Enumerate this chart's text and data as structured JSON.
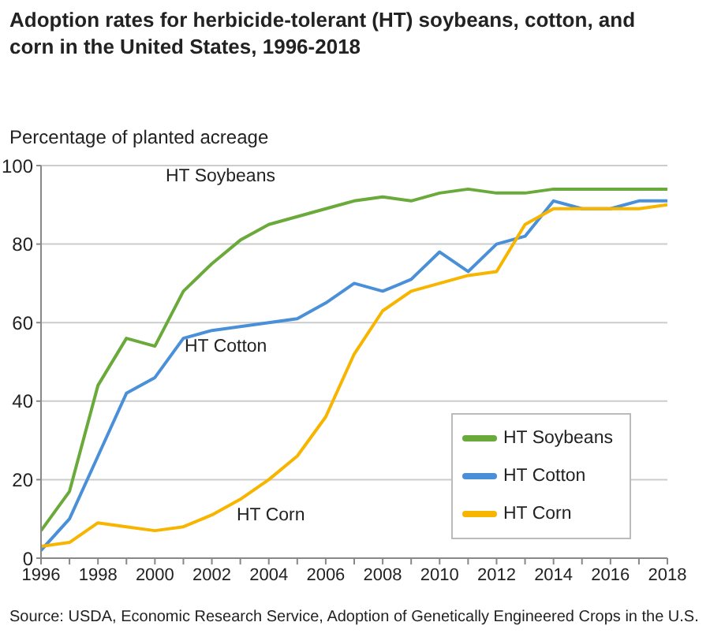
{
  "chart_data": {
    "type": "line",
    "title": "Adoption rates for herbicide-tolerant (HT) soybeans, cotton, and corn in the United States, 1996-2018",
    "ylabel": "Percentage of planted acreage",
    "x": [
      1996,
      1997,
      1998,
      1999,
      2000,
      2001,
      2002,
      2003,
      2004,
      2005,
      2006,
      2007,
      2008,
      2009,
      2010,
      2011,
      2012,
      2013,
      2014,
      2015,
      2016,
      2017,
      2018
    ],
    "series": [
      {
        "name": "HT Soybeans",
        "color": "#6aaa3a",
        "values": [
          7,
          17,
          44,
          56,
          54,
          68,
          75,
          81,
          85,
          87,
          89,
          91,
          92,
          91,
          93,
          94,
          93,
          93,
          94,
          94,
          94,
          94,
          94
        ]
      },
      {
        "name": "HT Cotton",
        "color": "#4a90d9",
        "values": [
          2,
          10,
          26,
          42,
          46,
          56,
          58,
          59,
          60,
          61,
          65,
          70,
          68,
          71,
          78,
          73,
          80,
          82,
          91,
          89,
          89,
          91,
          91
        ]
      },
      {
        "name": "HT Corn",
        "color": "#f7b500",
        "values": [
          3,
          4,
          9,
          8,
          7,
          8,
          11,
          15,
          20,
          26,
          36,
          52,
          63,
          68,
          70,
          72,
          73,
          85,
          89,
          89,
          89,
          89,
          90
        ]
      }
    ],
    "xlim": [
      1996,
      2018
    ],
    "xticks": [
      1996,
      {
        "value": 1997,
        "label": null
      },
      1998,
      {
        "value": 1999,
        "label": null
      },
      2000,
      {
        "value": 2001,
        "label": null
      },
      2002,
      {
        "value": 2003,
        "label": null
      },
      2004,
      {
        "value": 2005,
        "label": null
      },
      2006,
      {
        "value": 2007,
        "label": null
      },
      2008,
      {
        "value": 2009,
        "label": null
      },
      2010,
      {
        "value": 2011,
        "label": null
      },
      2012,
      {
        "value": 2013,
        "label": null
      },
      2014,
      {
        "value": 2015,
        "label": null
      },
      2016,
      {
        "value": 2017,
        "label": null
      },
      2018
    ],
    "ylim": [
      0,
      100
    ],
    "yticks": [
      0,
      20,
      40,
      60,
      80,
      100
    ],
    "grid": "y",
    "legend": "bottom right",
    "marker": "none",
    "line_style": "solid",
    "annotations": [
      "HT Soybeans",
      "HT Cotton",
      "HT Corn",
      "Source: USDA, Economic Research Service, Adoption of Genetically Engineered Crops in the U.S."
    ]
  }
}
